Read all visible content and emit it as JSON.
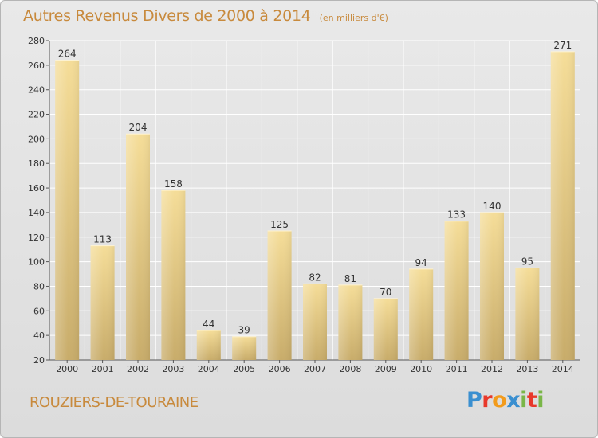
{
  "title": "Autres Revenus Divers de 2000 à 2014",
  "unit": "(en milliers d'€)",
  "commune": "ROUZIERS-DE-TOURAINE",
  "logo": {
    "text": "Proxiti",
    "colors": [
      "#3a8fd0",
      "#e8392b",
      "#f29b1b",
      "#3a8fd0",
      "#7ab648",
      "#e8392b",
      "#7ab648"
    ]
  },
  "colors": {
    "title": "#c88a3d",
    "bar_top": "#f5dd98",
    "bar_bottom": "#c8ac6a",
    "background": "#e3e3e3",
    "grid": "#ffffff"
  },
  "chart_data": {
    "type": "bar",
    "title": "Autres Revenus Divers de 2000 à 2014",
    "xlabel": "",
    "ylabel": "",
    "categories": [
      "2000",
      "2001",
      "2002",
      "2003",
      "2004",
      "2005",
      "2006",
      "2007",
      "2008",
      "2009",
      "2010",
      "2011",
      "2012",
      "2013",
      "2014"
    ],
    "values": [
      264,
      113,
      204,
      158,
      44,
      39,
      125,
      82,
      81,
      70,
      94,
      133,
      140,
      95,
      271
    ],
    "ylim": [
      20,
      280
    ],
    "yticks": [
      20,
      40,
      60,
      80,
      100,
      120,
      140,
      160,
      180,
      200,
      220,
      240,
      260,
      280
    ],
    "grid": true
  }
}
